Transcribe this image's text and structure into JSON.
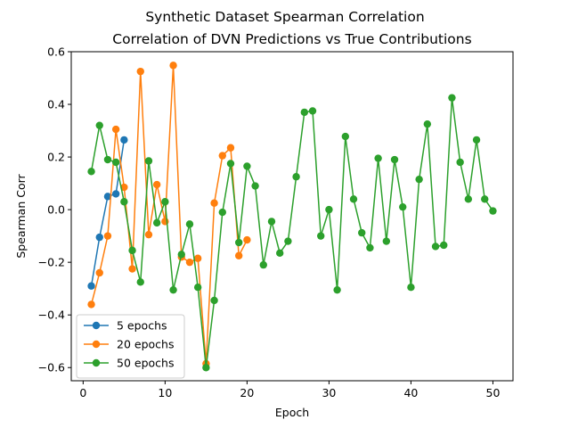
{
  "chart_data": {
    "type": "line",
    "title": "Synthetic Dataset Spearman Correlation",
    "subtitle": "Correlation of DVN Predictions vs True Contributions",
    "xlabel": "Epoch",
    "ylabel": "Spearman Corr",
    "xlim": [
      -1.45,
      52.45
    ],
    "ylim": [
      -0.65,
      0.6
    ],
    "xticks": [
      0,
      10,
      20,
      30,
      40,
      50
    ],
    "yticks": [
      -0.6,
      -0.4,
      -0.2,
      0.0,
      0.2,
      0.4,
      0.6
    ],
    "ytick_labels": [
      "−0.6",
      "−0.4",
      "−0.2",
      "0.0",
      "0.2",
      "0.4",
      "0.6"
    ],
    "grid": false,
    "legend_position": "lower-left",
    "series": [
      {
        "name": "5 epochs",
        "color": "#1f77b4",
        "x": [
          1,
          2,
          3,
          4,
          5
        ],
        "y": [
          -0.29,
          -0.105,
          0.05,
          0.06,
          0.265
        ]
      },
      {
        "name": "20 epochs",
        "color": "#ff7f0e",
        "x": [
          1,
          2,
          3,
          4,
          5,
          6,
          7,
          8,
          9,
          10,
          11,
          12,
          13,
          14,
          15,
          16,
          17,
          18,
          19,
          20
        ],
        "y": [
          -0.36,
          -0.24,
          -0.1,
          0.305,
          0.085,
          -0.225,
          0.525,
          -0.095,
          0.095,
          -0.045,
          0.548,
          -0.18,
          -0.2,
          -0.185,
          -0.585,
          0.025,
          0.205,
          0.235,
          -0.175,
          -0.115
        ]
      },
      {
        "name": "50 epochs",
        "color": "#2ca02c",
        "x": [
          1,
          2,
          3,
          4,
          5,
          6,
          7,
          8,
          9,
          10,
          11,
          12,
          13,
          14,
          15,
          16,
          17,
          18,
          19,
          20,
          21,
          22,
          23,
          24,
          25,
          26,
          27,
          28,
          29,
          30,
          31,
          32,
          33,
          34,
          35,
          36,
          37,
          38,
          39,
          40,
          41,
          42,
          43,
          44,
          45,
          46,
          47,
          48,
          49,
          50
        ],
        "y": [
          0.145,
          0.32,
          0.19,
          0.18,
          0.03,
          -0.155,
          -0.275,
          0.185,
          -0.05,
          0.03,
          -0.305,
          -0.17,
          -0.055,
          -0.295,
          -0.6,
          -0.345,
          -0.01,
          0.175,
          -0.125,
          0.165,
          0.09,
          -0.21,
          -0.045,
          -0.165,
          -0.12,
          0.125,
          0.37,
          0.375,
          -0.1,
          0.0,
          -0.305,
          0.278,
          0.04,
          -0.088,
          -0.145,
          0.195,
          -0.12,
          0.19,
          0.01,
          -0.295,
          0.115,
          0.325,
          -0.14,
          -0.135,
          0.425,
          0.18,
          0.04,
          0.265,
          0.04,
          -0.005
        ]
      }
    ]
  }
}
